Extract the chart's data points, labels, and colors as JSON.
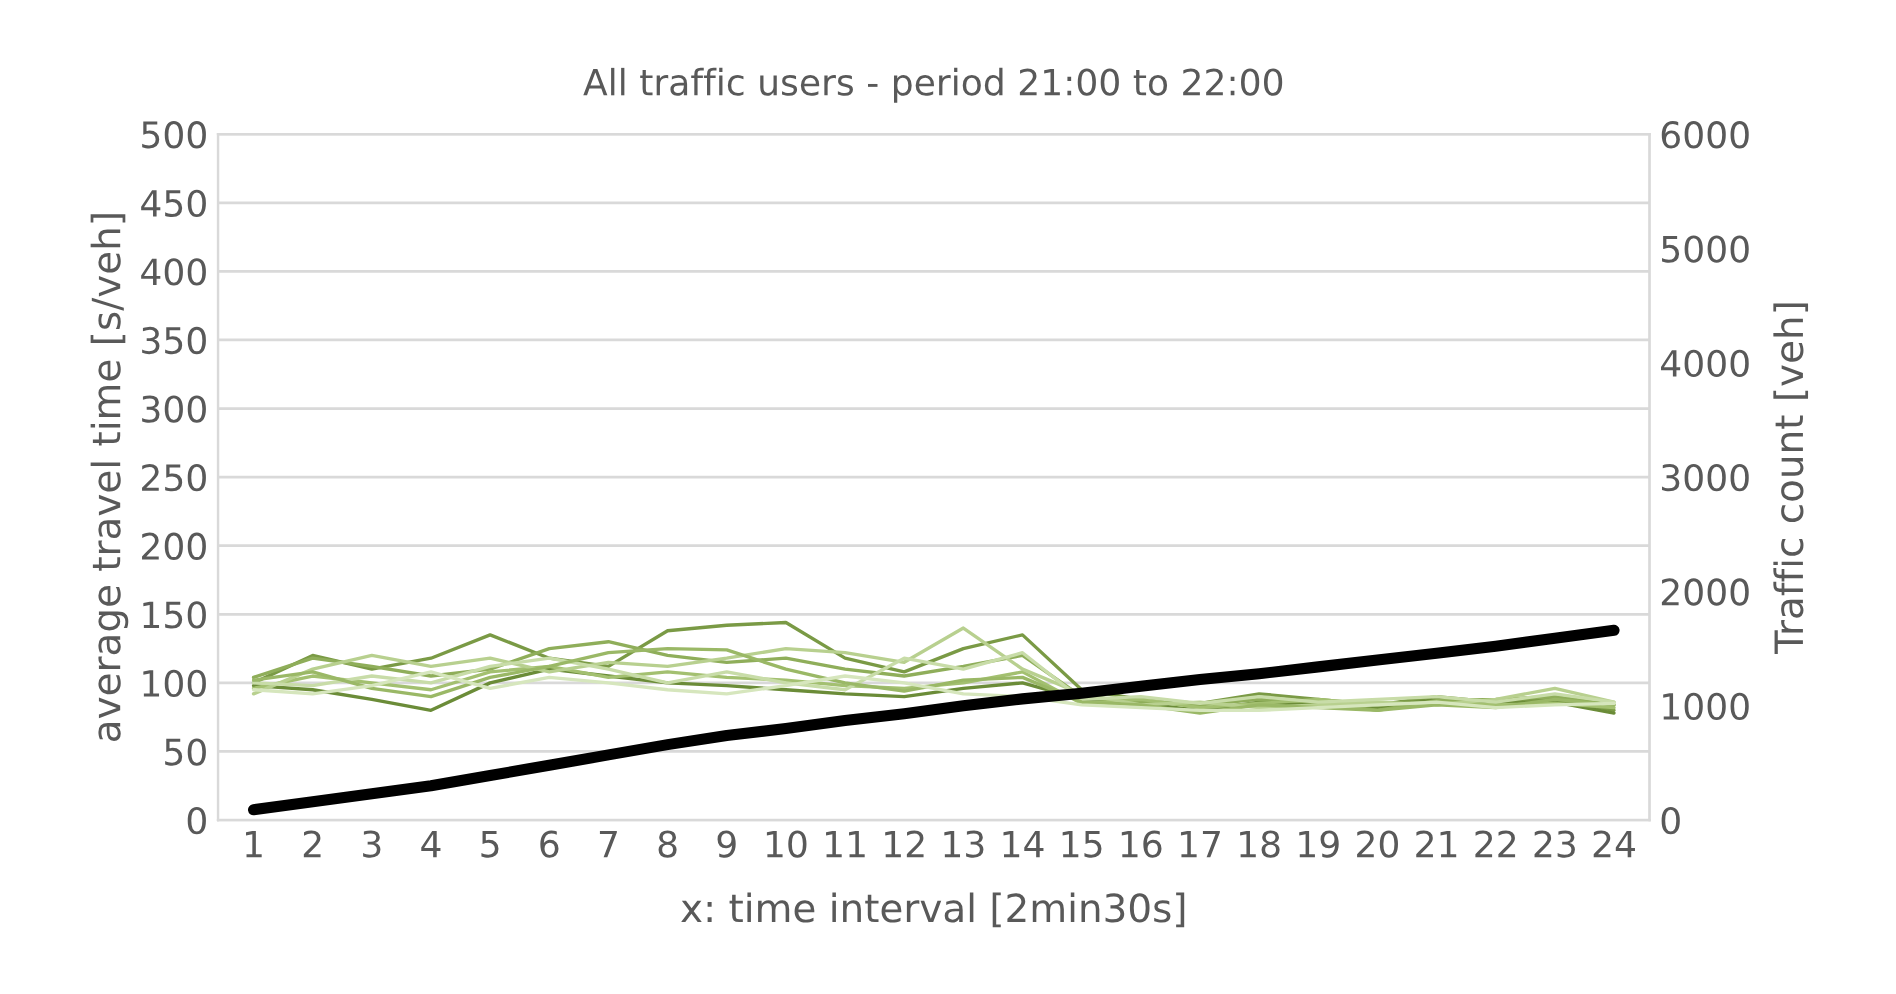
{
  "chart_data": {
    "type": "line",
    "title": "All traffic users - period 21:00 to 22:00",
    "xlabel": "x: time interval [2min30s]",
    "ylabel": "average travel time [s/veh]",
    "y2label": "Traffic count [veh]",
    "categories": [
      "1",
      "2",
      "3",
      "4",
      "5",
      "6",
      "7",
      "8",
      "9",
      "10",
      "11",
      "12",
      "13",
      "14",
      "15",
      "16",
      "17",
      "18",
      "19",
      "20",
      "21",
      "22",
      "23",
      "24"
    ],
    "series": [
      {
        "color": "#7a9a45",
        "values": [
          100,
          120,
          110,
          118,
          135,
          118,
          112,
          138,
          142,
          144,
          118,
          108,
          125,
          135,
          95,
          88,
          85,
          92,
          88,
          84,
          90,
          86,
          88,
          80
        ]
      },
      {
        "color": "#6b8c38",
        "values": [
          98,
          95,
          88,
          80,
          100,
          110,
          105,
          100,
          98,
          95,
          92,
          90,
          96,
          100,
          88,
          85,
          80,
          86,
          84,
          82,
          88,
          85,
          86,
          78
        ]
      },
      {
        "color": "#8fae5a",
        "values": [
          104,
          118,
          112,
          105,
          110,
          125,
          130,
          120,
          115,
          118,
          110,
          105,
          112,
          120,
          90,
          86,
          84,
          88,
          86,
          80,
          87,
          88,
          90,
          84
        ]
      },
      {
        "color": "#a3c070",
        "values": [
          96,
          105,
          100,
          95,
          108,
          112,
          104,
          108,
          104,
          102,
          98,
          96,
          100,
          108,
          85,
          88,
          82,
          85,
          88,
          84,
          86,
          84,
          85,
          82
        ]
      },
      {
        "color": "#b8d08f",
        "values": [
          92,
          110,
          120,
          112,
          118,
          108,
          115,
          112,
          118,
          125,
          122,
          115,
          140,
          110,
          92,
          84,
          86,
          82,
          84,
          86,
          84,
          88,
          96,
          86
        ]
      },
      {
        "color": "#c8dca8",
        "values": [
          100,
          98,
          105,
          100,
          112,
          118,
          110,
          100,
          108,
          100,
          95,
          118,
          110,
          122,
          88,
          90,
          85,
          90,
          86,
          88,
          90,
          86,
          92,
          86
        ]
      },
      {
        "color": "#9ab866",
        "values": [
          102,
          108,
          96,
          90,
          104,
          112,
          122,
          125,
          124,
          110,
          100,
          94,
          102,
          104,
          86,
          84,
          78,
          84,
          82,
          80,
          84,
          82,
          88,
          84
        ]
      },
      {
        "color": "#d6e6bd",
        "values": [
          95,
          92,
          98,
          108,
          96,
          104,
          100,
          95,
          92,
          98,
          105,
          100,
          92,
          90,
          84,
          82,
          80,
          80,
          82,
          84,
          86,
          82,
          84,
          85
        ]
      },
      {
        "color": "#000000",
        "axis": "y2",
        "values": [
          90,
          160,
          230,
          300,
          390,
          480,
          570,
          660,
          740,
          800,
          870,
          930,
          1000,
          1060,
          1110,
          1170,
          1230,
          1280,
          1340,
          1400,
          1460,
          1520,
          1590,
          1660
        ]
      }
    ],
    "ylim": [
      0,
      500
    ],
    "yticks": [
      0,
      50,
      100,
      150,
      200,
      250,
      300,
      350,
      400,
      450,
      500
    ],
    "y2lim": [
      0,
      6000
    ],
    "y2ticks": [
      0,
      1000,
      2000,
      3000,
      4000,
      5000,
      6000
    ],
    "grid": "y",
    "legend": false
  }
}
